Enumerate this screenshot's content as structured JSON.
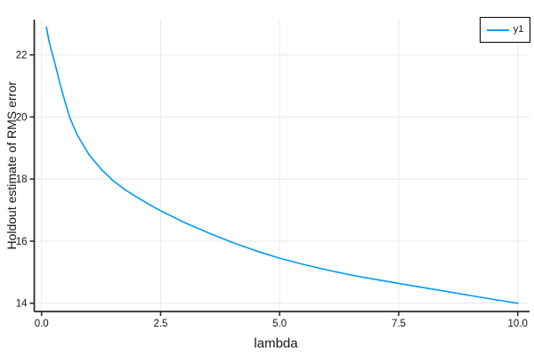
{
  "chart_data": {
    "type": "line",
    "title": "",
    "xlabel": "lambda",
    "ylabel": "Holdout estimate of RMS error",
    "grid": true,
    "legend_position": "top-right",
    "background_color": "#ffffff",
    "grid_color": "#e9e9e9",
    "axis_color": "#2b2b2b",
    "tick_label_color": "#151515",
    "xlim": [
      0,
      10
    ],
    "ylim": [
      14,
      23.1
    ],
    "xticks": {
      "values": [
        0,
        2.5,
        5,
        7.5,
        10
      ],
      "labels": [
        "0.0",
        "2.5",
        "5.0",
        "7.5",
        "10.0"
      ]
    },
    "yticks": {
      "values": [
        14,
        16,
        18,
        20,
        22
      ],
      "labels": [
        "14",
        "16",
        "18",
        "20",
        "22"
      ]
    },
    "series": [
      {
        "name": "y1",
        "color": "#009af9",
        "x": [
          0.1,
          0.15,
          0.2,
          0.25,
          0.3,
          0.4,
          0.5,
          0.6,
          0.75,
          1.0,
          1.25,
          1.5,
          1.75,
          2.0,
          2.25,
          2.5,
          3.0,
          3.5,
          4.0,
          4.5,
          5.0,
          5.5,
          6.0,
          6.5,
          7.0,
          7.5,
          8.0,
          8.5,
          9.0,
          9.5,
          10.0
        ],
        "y": [
          22.9,
          22.5,
          22.17,
          21.9,
          21.6,
          21.0,
          20.45,
          19.95,
          19.42,
          18.78,
          18.32,
          17.95,
          17.66,
          17.42,
          17.19,
          16.98,
          16.6,
          16.27,
          15.96,
          15.69,
          15.45,
          15.25,
          15.07,
          14.91,
          14.77,
          14.64,
          14.51,
          14.38,
          14.25,
          14.12,
          14.0
        ]
      }
    ]
  }
}
